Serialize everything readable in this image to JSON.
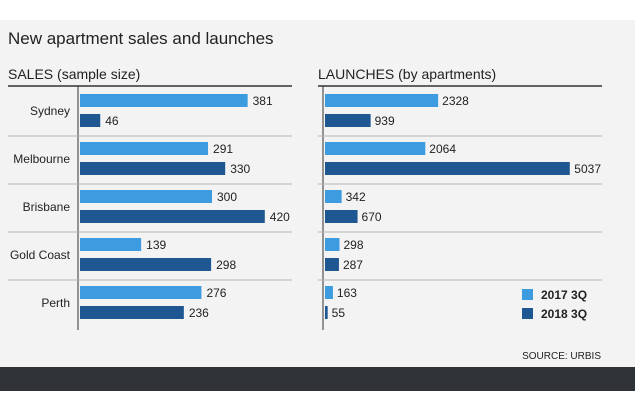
{
  "chart_data": {
    "type": "bar",
    "title": "New apartment sales and launches",
    "categories": [
      "Sydney",
      "Melbourne",
      "Brisbane",
      "Gold Coast",
      "Perth"
    ],
    "panels": [
      {
        "title": "SALES (sample size)",
        "series": [
          {
            "name": "2017 3Q",
            "values": [
              381,
              291,
              300,
              139,
              276
            ]
          },
          {
            "name": "2018 3Q",
            "values": [
              46,
              330,
              420,
              298,
              236
            ]
          }
        ]
      },
      {
        "title": "LAUNCHES (by apartments)",
        "series": [
          {
            "name": "2017 3Q",
            "values": [
              2328,
              2064,
              342,
              298,
              163
            ]
          },
          {
            "name": "2018 3Q",
            "values": [
              939,
              5037,
              670,
              287,
              55
            ]
          }
        ]
      }
    ],
    "legend": {
      "position": "bottom-right",
      "items": [
        {
          "label": "2017 3Q",
          "color": "#3d9be0"
        },
        {
          "label": "2018 3Q",
          "color": "#1f5792"
        }
      ]
    },
    "colors": {
      "series_2017": "#3d9be0",
      "series_2018": "#1f5792"
    },
    "source": "SOURCE: URBIS"
  }
}
